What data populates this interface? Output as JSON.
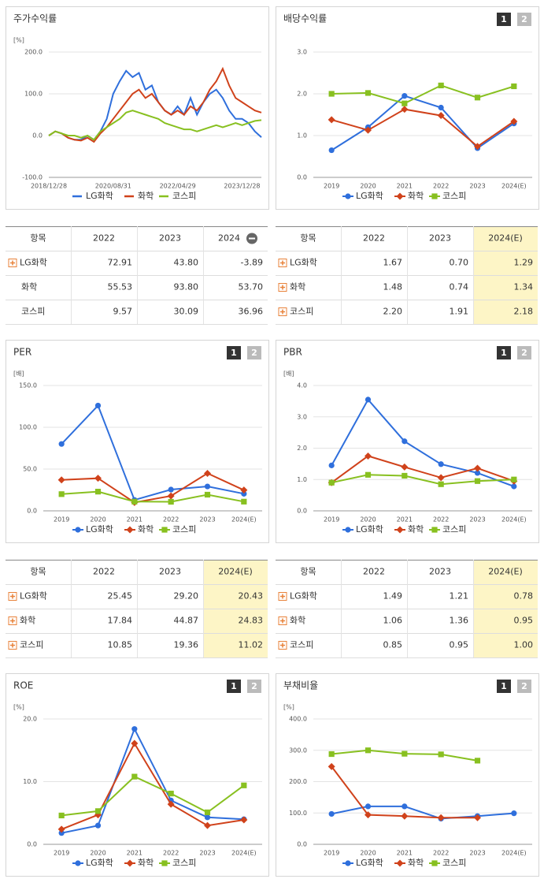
{
  "chart_data": [
    {
      "type": "line",
      "title": "주가수익률",
      "unit": "[%]",
      "categories": [
        "2018/12/28",
        null,
        null,
        null,
        null,
        null,
        null,
        null,
        null,
        null,
        "2020/08/31",
        null,
        null,
        null,
        null,
        null,
        null,
        null,
        null,
        null,
        "2022/04/29",
        null,
        null,
        null,
        null,
        null,
        null,
        null,
        null,
        null,
        "2023/12/28",
        null,
        null,
        null
      ],
      "ylim": [
        -100,
        200
      ],
      "yticks": [
        {
          "value": -100,
          "label": "-100.0"
        },
        {
          "value": 0,
          "label": "0.0"
        },
        {
          "value": 100,
          "label": "100.0"
        },
        {
          "value": 200,
          "label": "200.0"
        }
      ],
      "series": [
        {
          "name": "LG화학",
          "color": "#2f6fdc",
          "values": [
            0,
            10,
            5,
            -5,
            -10,
            -10,
            0,
            -10,
            10,
            40,
            100,
            130,
            155,
            140,
            150,
            110,
            120,
            80,
            60,
            50,
            70,
            50,
            90,
            50,
            80,
            100,
            110,
            90,
            60,
            40,
            40,
            30,
            10,
            -4
          ]
        },
        {
          "name": "화학",
          "color": "#d0421b",
          "values": [
            0,
            10,
            5,
            -5,
            -10,
            -12,
            -5,
            -15,
            5,
            20,
            40,
            60,
            80,
            100,
            110,
            90,
            100,
            80,
            60,
            50,
            60,
            50,
            70,
            60,
            80,
            110,
            130,
            160,
            120,
            90,
            80,
            70,
            60,
            55
          ]
        },
        {
          "name": "코스피",
          "color": "#88c020",
          "values": [
            0,
            10,
            5,
            0,
            0,
            -5,
            0,
            -10,
            10,
            20,
            30,
            40,
            55,
            60,
            55,
            50,
            45,
            40,
            30,
            25,
            20,
            15,
            15,
            10,
            15,
            20,
            25,
            20,
            25,
            30,
            25,
            30,
            35,
            37
          ]
        }
      ]
    },
    {
      "type": "line",
      "title": "배당수익률",
      "pager": [
        "1",
        "2"
      ],
      "categories": [
        "2019",
        "2020",
        "2021",
        "2022",
        "2023",
        "2024(E)"
      ],
      "ylim": [
        0,
        3
      ],
      "yticks": [
        {
          "value": 0,
          "label": "0.0"
        },
        {
          "value": 1,
          "label": "1.0"
        },
        {
          "value": 2,
          "label": "2.0"
        },
        {
          "value": 3,
          "label": "3.0"
        }
      ],
      "series": [
        {
          "name": "LG화학",
          "color": "#2f6fdc",
          "marker": "circle",
          "values": [
            0.65,
            1.2,
            1.95,
            1.67,
            0.7,
            1.29
          ]
        },
        {
          "name": "화학",
          "color": "#d0421b",
          "marker": "diamond",
          "values": [
            1.38,
            1.13,
            1.63,
            1.48,
            0.74,
            1.34
          ]
        },
        {
          "name": "코스피",
          "color": "#88c020",
          "marker": "square",
          "values": [
            2.0,
            2.02,
            1.77,
            2.2,
            1.91,
            2.18
          ]
        }
      ]
    },
    {
      "type": "line",
      "title": "PER",
      "unit": "[배]",
      "pager": [
        "1",
        "2"
      ],
      "categories": [
        "2019",
        "2020",
        "2021",
        "2022",
        "2023",
        "2024(E)"
      ],
      "ylim": [
        0,
        150
      ],
      "yticks": [
        {
          "value": 0,
          "label": "0.0"
        },
        {
          "value": 50,
          "label": "50.0"
        },
        {
          "value": 100,
          "label": "100.0"
        },
        {
          "value": 150,
          "label": "150.0"
        }
      ],
      "series": [
        {
          "name": "LG화학",
          "color": "#2f6fdc",
          "marker": "circle",
          "values": [
            80,
            126,
            13,
            25.45,
            29.2,
            20.43
          ]
        },
        {
          "name": "화학",
          "color": "#d0421b",
          "marker": "diamond",
          "values": [
            37,
            39,
            10,
            17.84,
            44.87,
            24.83
          ]
        },
        {
          "name": "코스피",
          "color": "#88c020",
          "marker": "square",
          "values": [
            20,
            23,
            11,
            10.85,
            19.36,
            11.02
          ]
        }
      ]
    },
    {
      "type": "line",
      "title": "PBR",
      "unit": "[배]",
      "pager": [
        "1",
        "2"
      ],
      "categories": [
        "2019",
        "2020",
        "2021",
        "2022",
        "2023",
        "2024(E)"
      ],
      "ylim": [
        0,
        4
      ],
      "yticks": [
        {
          "value": 0,
          "label": "0.0"
        },
        {
          "value": 1,
          "label": "1.0"
        },
        {
          "value": 2,
          "label": "2.0"
        },
        {
          "value": 3,
          "label": "3.0"
        },
        {
          "value": 4,
          "label": "4.0"
        }
      ],
      "series": [
        {
          "name": "LG화학",
          "color": "#2f6fdc",
          "marker": "circle",
          "values": [
            1.45,
            3.55,
            2.22,
            1.49,
            1.21,
            0.78
          ]
        },
        {
          "name": "화학",
          "color": "#d0421b",
          "marker": "diamond",
          "values": [
            0.9,
            1.75,
            1.4,
            1.06,
            1.36,
            0.95
          ]
        },
        {
          "name": "코스피",
          "color": "#88c020",
          "marker": "square",
          "values": [
            0.9,
            1.15,
            1.12,
            0.85,
            0.95,
            1.0
          ]
        }
      ]
    },
    {
      "type": "line",
      "title": "ROE",
      "unit": "[%]",
      "pager": [
        "1",
        "2"
      ],
      "categories": [
        "2019",
        "2020",
        "2021",
        "2022",
        "2023",
        "2024(E)"
      ],
      "ylim": [
        0,
        20
      ],
      "yticks": [
        {
          "value": 0,
          "label": "0.0"
        },
        {
          "value": 10,
          "label": "10.0"
        },
        {
          "value": 20,
          "label": "20.0"
        }
      ],
      "series": [
        {
          "name": "LG화학",
          "color": "#2f6fdc",
          "marker": "circle",
          "values": [
            1.8,
            3.0,
            18.4,
            7.0,
            4.3,
            4.0
          ]
        },
        {
          "name": "화학",
          "color": "#d0421b",
          "marker": "diamond",
          "values": [
            2.4,
            4.7,
            16.1,
            6.4,
            3.0,
            3.9
          ]
        },
        {
          "name": "코스피",
          "color": "#88c020",
          "marker": "square",
          "values": [
            4.6,
            5.3,
            10.8,
            8.1,
            5.1,
            9.4
          ]
        }
      ]
    },
    {
      "type": "line",
      "title": "부채비율",
      "unit": "[%]",
      "pager": [
        "1",
        "2"
      ],
      "categories": [
        "2019",
        "2020",
        "2021",
        "2022",
        "2023",
        "2024(E)"
      ],
      "ylim": [
        0,
        400
      ],
      "yticks": [
        {
          "value": 0,
          "label": "0.0"
        },
        {
          "value": 100,
          "label": "100.0"
        },
        {
          "value": 200,
          "label": "200.0"
        },
        {
          "value": 300,
          "label": "300.0"
        },
        {
          "value": 400,
          "label": "400.0"
        }
      ],
      "series": [
        {
          "name": "LG화학",
          "color": "#2f6fdc",
          "marker": "circle",
          "values": [
            97,
            121,
            121,
            82,
            90,
            99
          ]
        },
        {
          "name": "화학",
          "color": "#d0421b",
          "marker": "diamond",
          "values": [
            248,
            94,
            90,
            85,
            85,
            null
          ]
        },
        {
          "name": "코스피",
          "color": "#88c020",
          "marker": "square",
          "values": [
            288,
            300,
            289,
            287,
            267,
            null
          ]
        }
      ]
    }
  ],
  "tables": [
    {
      "columns": [
        "항목",
        "2022",
        "2023",
        "2024"
      ],
      "highlight_last": false,
      "rows": [
        [
          "LG화학",
          "72.91",
          "43.80",
          "-3.89"
        ],
        [
          "화학",
          "55.53",
          "93.80",
          "53.70"
        ],
        [
          "코스피",
          "9.57",
          "30.09",
          "36.96"
        ]
      ]
    },
    {
      "columns": [
        "항목",
        "2022",
        "2023",
        "2024(E)"
      ],
      "highlight_last": true,
      "rows": [
        [
          "LG화학",
          "1.67",
          "0.70",
          "1.29"
        ],
        [
          "화학",
          "1.48",
          "0.74",
          "1.34"
        ],
        [
          "코스피",
          "2.20",
          "1.91",
          "2.18"
        ]
      ]
    },
    {
      "columns": [
        "항목",
        "2022",
        "2023",
        "2024(E)"
      ],
      "highlight_last": true,
      "rows": [
        [
          "LG화학",
          "25.45",
          "29.20",
          "20.43"
        ],
        [
          "화학",
          "17.84",
          "44.87",
          "24.83"
        ],
        [
          "코스피",
          "10.85",
          "19.36",
          "11.02"
        ]
      ]
    },
    {
      "columns": [
        "항목",
        "2022",
        "2023",
        "2024(E)"
      ],
      "highlight_last": true,
      "rows": [
        [
          "LG화학",
          "1.49",
          "1.21",
          "0.78"
        ],
        [
          "화학",
          "1.06",
          "1.36",
          "0.95"
        ],
        [
          "코스피",
          "0.85",
          "0.95",
          "1.00"
        ]
      ]
    }
  ]
}
